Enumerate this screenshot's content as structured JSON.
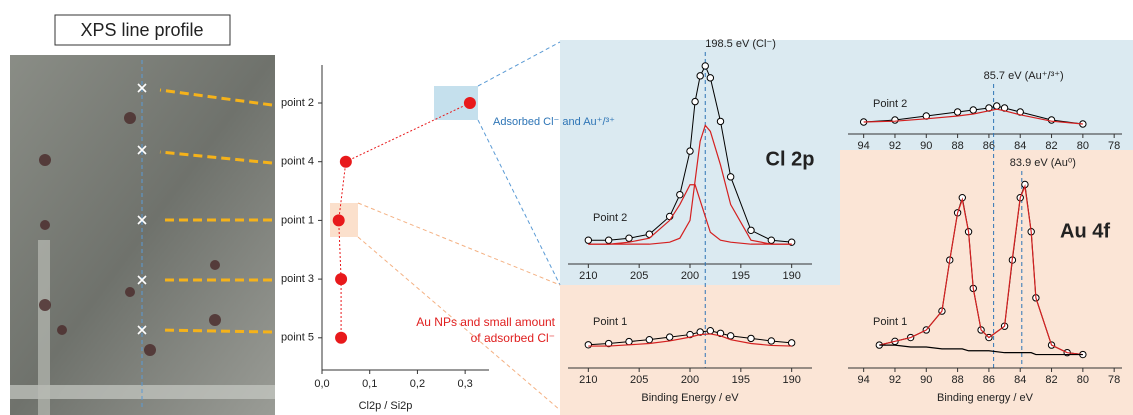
{
  "title": "XPS line profile",
  "annotations": [
    "Adsorbed Cl⁻ and Au⁺/³⁺",
    "Au NPs and small amount",
    "of adsorbed Cl⁻"
  ],
  "chart_data": [
    {
      "type": "dot",
      "categories": [
        "point 2",
        "point 4",
        "point 1",
        "point 3",
        "point 5"
      ],
      "values": [
        0.31,
        0.05,
        0.035,
        0.04,
        0.04
      ],
      "color": "#e8191b",
      "xlim": [
        0,
        0.35
      ],
      "xticks": [
        {
          "value": 0,
          "label": "0,0"
        },
        {
          "value": 0.1,
          "label": "0,1"
        },
        {
          "value": 0.2,
          "label": "0,2"
        },
        {
          "value": 0.3,
          "label": "0,3"
        }
      ],
      "x_label": "Cl2p / Si2p"
    },
    {
      "type": "line",
      "title": "Cl 2p",
      "panel_label": "Point 2",
      "x": [
        210,
        208,
        206,
        204,
        202,
        201,
        200,
        199.5,
        199,
        198.5,
        198,
        197,
        196,
        194,
        192,
        190
      ],
      "series": [
        {
          "color": "#000000",
          "marker": "circle",
          "values": [
            10,
            10,
            11,
            13,
            22,
            33,
            55,
            80,
            93,
            98,
            92,
            70,
            42,
            15,
            10,
            9
          ]
        },
        {
          "color": "#d42020",
          "values": [
            8,
            8,
            8,
            8,
            9,
            11,
            20,
            40,
            60,
            68,
            65,
            48,
            28,
            10,
            8,
            8
          ]
        },
        {
          "color": "#d42020",
          "values": [
            8,
            8,
            9,
            11,
            20,
            28,
            38,
            38,
            30,
            22,
            14,
            10,
            9,
            8,
            8,
            8
          ]
        }
      ],
      "xlim": [
        212,
        188
      ],
      "ylim": [
        0,
        100
      ],
      "xticks": [
        210,
        205,
        200,
        195,
        190
      ],
      "reference_lines": [
        {
          "value": 198.5,
          "label": "198.5 eV (Cl⁻)"
        }
      ]
    },
    {
      "type": "line",
      "panel_label": "Point 2",
      "x": [
        94,
        92,
        90,
        88,
        87,
        86,
        85.5,
        85,
        84,
        82,
        80
      ],
      "series": [
        {
          "color": "#000000",
          "marker": "circle",
          "values": [
            20,
            25,
            35,
            45,
            50,
            55,
            60,
            55,
            45,
            25,
            15
          ]
        },
        {
          "color": "#d42020",
          "values": [
            20,
            22,
            28,
            35,
            40,
            48,
            52,
            48,
            38,
            22,
            15
          ]
        }
      ],
      "xlim": [
        95,
        77.5
      ],
      "ylim": [
        0,
        100
      ],
      "xticks": [
        94,
        92,
        90,
        88,
        86,
        84,
        82,
        80,
        78
      ],
      "reference_lines": [
        {
          "value": 85.7,
          "label": "85.7 eV (Au⁺/³⁺)"
        }
      ]
    },
    {
      "type": "line",
      "panel_label": "Point 1",
      "x": [
        210,
        208,
        206,
        204,
        202,
        200,
        199,
        198,
        197,
        196,
        194,
        192,
        190
      ],
      "series": [
        {
          "color": "#000000",
          "marker": "circle",
          "values": [
            30,
            32,
            35,
            38,
            42,
            46,
            50,
            52,
            48,
            44,
            40,
            36,
            33
          ]
        },
        {
          "color": "#d42020",
          "values": [
            28,
            28,
            30,
            32,
            36,
            42,
            46,
            47,
            44,
            38,
            32,
            29,
            28
          ]
        }
      ],
      "xlim": [
        212,
        188
      ],
      "ylim": [
        0,
        100
      ],
      "xticks": [
        210,
        205,
        200,
        195,
        190
      ],
      "x_label": "Binding Energy / eV"
    },
    {
      "type": "line",
      "title": "Au 4f",
      "panel_label": "Point 1",
      "x": [
        93,
        92,
        91,
        90,
        89,
        88.5,
        88,
        87.7,
        87.3,
        87,
        86.5,
        86,
        85,
        84.5,
        84,
        83.7,
        83.3,
        83,
        82,
        81,
        80
      ],
      "series": [
        {
          "color": "#000000",
          "marker": "circle",
          "values": [
            10,
            12,
            14,
            18,
            28,
            55,
            80,
            88,
            70,
            40,
            18,
            14,
            20,
            55,
            88,
            95,
            70,
            35,
            10,
            6,
            5
          ]
        },
        {
          "color": "#d42020",
          "values": [
            10,
            12,
            14,
            18,
            28,
            55,
            80,
            87,
            70,
            40,
            18,
            14,
            20,
            56,
            88,
            94,
            70,
            35,
            10,
            6,
            5
          ]
        },
        {
          "color": "#000000",
          "values": [
            10,
            10,
            9,
            9,
            8,
            8,
            8,
            8,
            7,
            7,
            7,
            7,
            6,
            6,
            6,
            6,
            6,
            5,
            5,
            5,
            5
          ]
        }
      ],
      "xlim": [
        95,
        77.5
      ],
      "ylim": [
        0,
        100
      ],
      "xticks": [
        94,
        92,
        90,
        88,
        86,
        84,
        82,
        80,
        78
      ],
      "x_label": "Binding energy / eV",
      "reference_lines": [
        {
          "value": 83.9,
          "label": "83.9 eV (Au⁰)"
        }
      ]
    }
  ]
}
